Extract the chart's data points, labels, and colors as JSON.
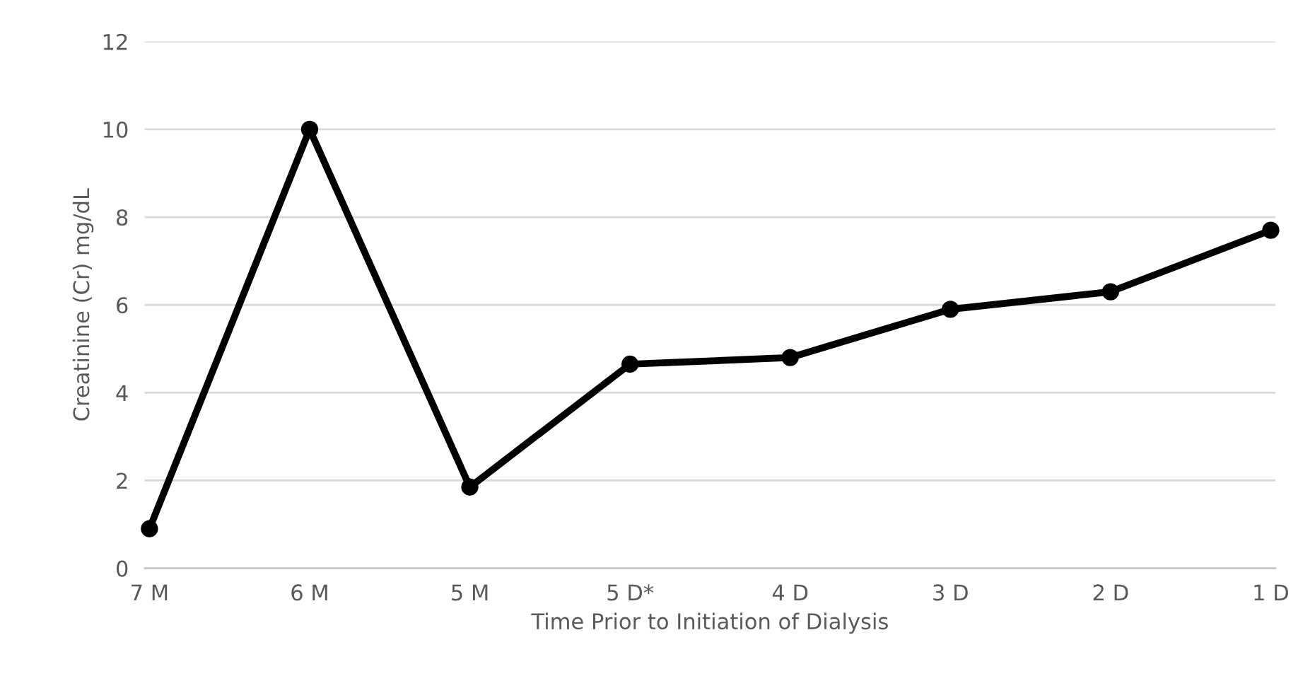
{
  "chart_data": {
    "type": "line",
    "xlabel": "Time Prior to Initiation of Dialysis",
    "ylabel": "Creatinine (Cr) mg/dL",
    "categories": [
      "7 M",
      "6 M",
      "5 M",
      "5 D*",
      "4 D",
      "3 D",
      "2 D",
      "1 D"
    ],
    "series": [
      {
        "color": "#000000",
        "values": [
          0.9,
          10,
          1.85,
          4.65,
          4.8,
          5.9,
          6.3,
          7.7
        ]
      }
    ],
    "ylim": [
      0,
      12
    ],
    "yticks": [
      0,
      2,
      4,
      6,
      8,
      10,
      12
    ],
    "grid": "y",
    "marker": "circle",
    "line_style": "solid",
    "legend": false
  }
}
